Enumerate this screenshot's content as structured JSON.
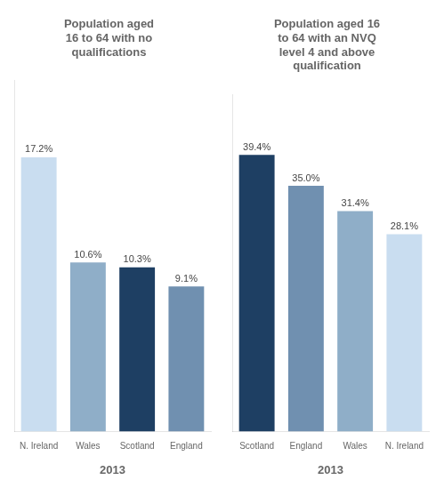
{
  "chart_data": [
    {
      "type": "bar",
      "title": "Population aged\n16 to 64 with no\nqualifications",
      "categories": [
        "N. Ireland",
        "Wales",
        "Scotland",
        "England"
      ],
      "values": [
        17.2,
        10.6,
        10.3,
        9.1
      ],
      "value_labels": [
        "17.2%",
        "10.6%",
        "10.3%",
        "9.1%"
      ],
      "colors": [
        "#c9ddf0",
        "#8faec8",
        "#1e3f63",
        "#7090b0"
      ],
      "xlabel": "2013",
      "ylim": [
        0,
        22
      ],
      "grid": false,
      "data_labels": true,
      "tick_labels": "x"
    },
    {
      "type": "bar",
      "title": "Population aged 16\nto 64 with an NVQ\nlevel 4 and above\nqualification",
      "categories": [
        "Scotland",
        "England",
        "Wales",
        "N. Ireland"
      ],
      "values": [
        39.4,
        35.0,
        31.4,
        28.1
      ],
      "value_labels": [
        "39.4%",
        "35.0%",
        "31.4%",
        "28.1%"
      ],
      "colors": [
        "#1e3f63",
        "#7090b0",
        "#8faec8",
        "#c9ddf0"
      ],
      "xlabel": "2013",
      "ylim": [
        0,
        48
      ],
      "grid": false,
      "data_labels": true,
      "tick_labels": "x"
    }
  ]
}
